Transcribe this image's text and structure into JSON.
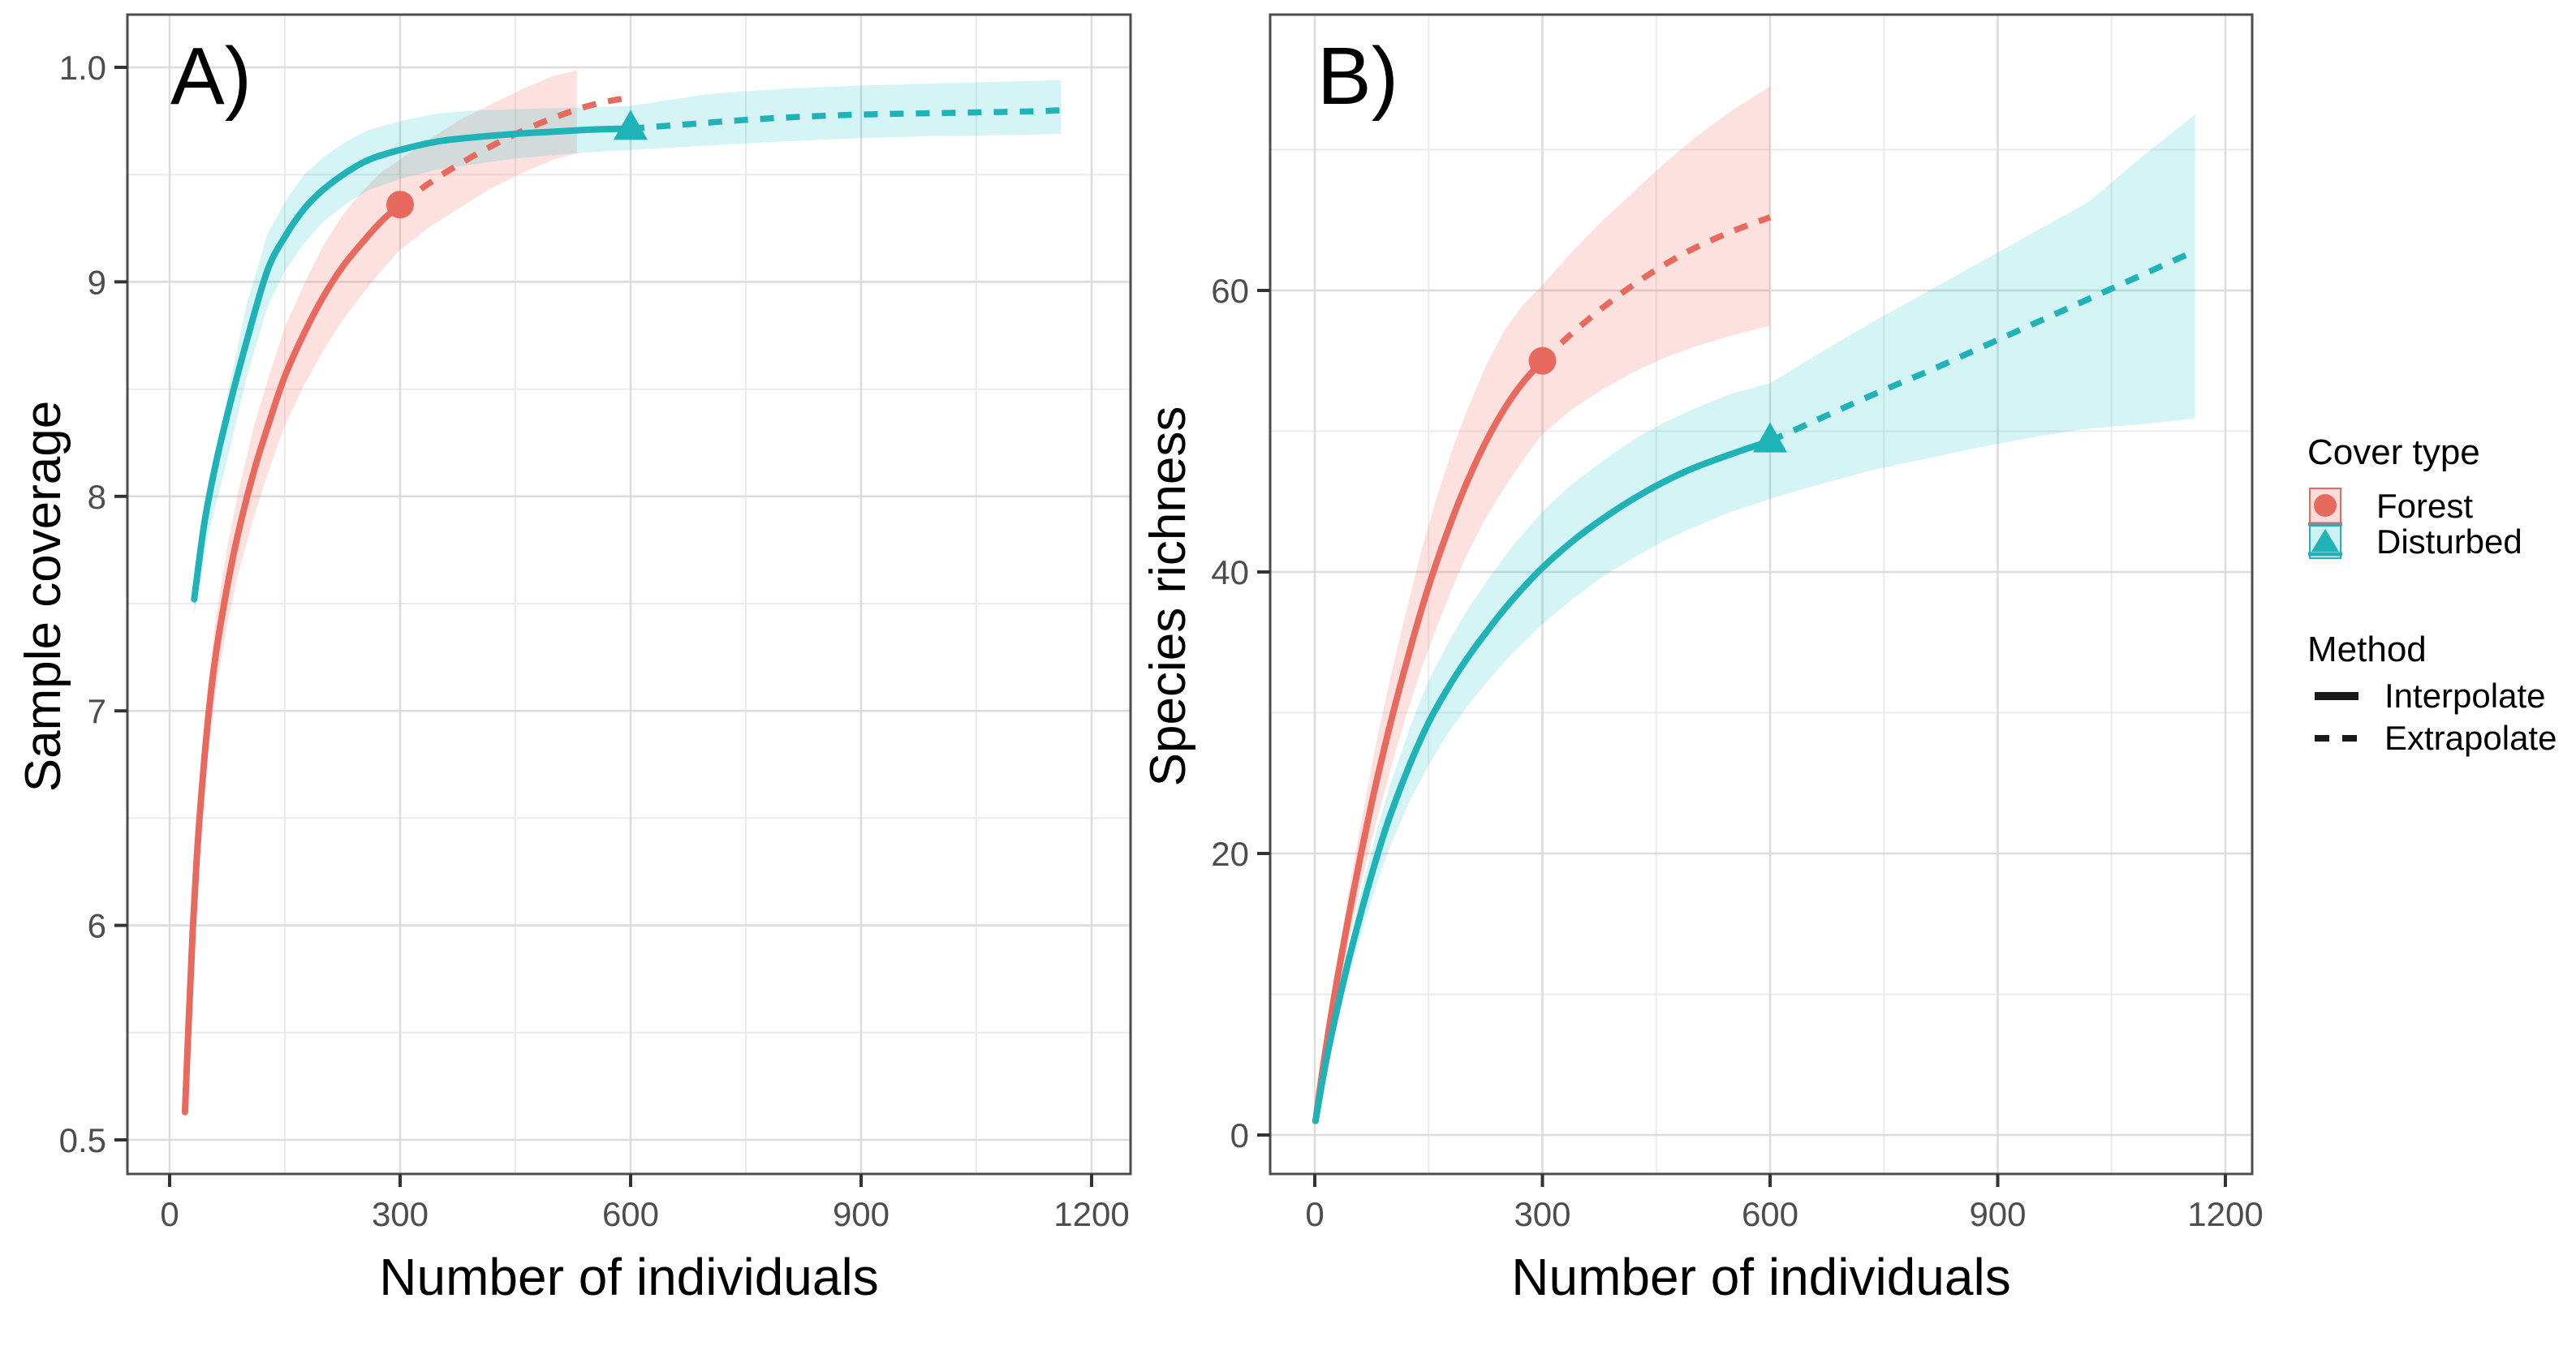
{
  "figure": {
    "background": "#ffffff",
    "colors": {
      "forest": "#e8695e",
      "disturbed": "#1fb3b7",
      "forest_fill": "#f8766d",
      "disturbed_fill": "#00bfc4",
      "grid_major": "#dcdcdc",
      "grid_minor": "#ebebeb",
      "panel_border": "#4d4d4d",
      "tick": "#333333",
      "axis_text": "#4d4d4d",
      "title_text": "#000000",
      "legend_line": "#1a1a1a"
    },
    "legend": {
      "cover": {
        "title": "Cover type",
        "items": [
          {
            "label": "Forest",
            "series": "forest",
            "marker": "circle"
          },
          {
            "label": "Disturbed",
            "series": "disturbed",
            "marker": "triangle"
          }
        ]
      },
      "method": {
        "title": "Method",
        "items": [
          {
            "label": "Interpolate",
            "style": "solid"
          },
          {
            "label": "Extrapolate",
            "style": "dashed"
          }
        ]
      }
    }
  },
  "chart_data": [
    {
      "type": "line",
      "panel_tag": "A)",
      "xlabel": "Number of individuals",
      "ylabel": "Sample coverage",
      "xlim": [
        0,
        1200
      ],
      "ylim": [
        0.5,
        1.0
      ],
      "grid": true,
      "x_ticks": [
        0,
        300,
        600,
        900,
        1200
      ],
      "x_minor": [
        150,
        450,
        750,
        1050
      ],
      "y_ticks": [
        {
          "label": "1.0",
          "value": 1.0
        },
        {
          "label": "9",
          "value": 0.9
        },
        {
          "label": "8",
          "value": 0.8
        },
        {
          "label": "7",
          "value": 0.7
        },
        {
          "label": "6",
          "value": 0.6
        },
        {
          "label": "0.5",
          "value": 0.5
        }
      ],
      "y_minor": [
        0.55,
        0.65,
        0.75,
        0.85,
        0.95
      ],
      "series": [
        {
          "name": "Forest",
          "color_key": "forest",
          "marker": "circle",
          "observed": [
            300,
            0.936
          ],
          "interpolated": [
            [
              20,
              0.513
            ],
            [
              25,
              0.557
            ],
            [
              30,
              0.597
            ],
            [
              35,
              0.629
            ],
            [
              40,
              0.655
            ],
            [
              50,
              0.696
            ],
            [
              60,
              0.726
            ],
            [
              75,
              0.758
            ],
            [
              90,
              0.784
            ],
            [
              110,
              0.812
            ],
            [
              130,
              0.835
            ],
            [
              150,
              0.856
            ],
            [
              175,
              0.876
            ],
            [
              200,
              0.893
            ],
            [
              225,
              0.907
            ],
            [
              250,
              0.918
            ],
            [
              275,
              0.928
            ],
            [
              300,
              0.936
            ]
          ],
          "extrapolated": [
            [
              300,
              0.936
            ],
            [
              340,
              0.9465
            ],
            [
              380,
              0.9555
            ],
            [
              420,
              0.9635
            ],
            [
              460,
              0.9705
            ],
            [
              500,
              0.9765
            ],
            [
              540,
              0.9815
            ],
            [
              575,
              0.9845
            ],
            [
              595,
              0.9855
            ]
          ],
          "ribbon": [
            [
              20,
              0.506,
              0.52
            ],
            [
              30,
              0.585,
              0.609
            ],
            [
              40,
              0.641,
              0.669
            ],
            [
              50,
              0.68,
              0.712
            ],
            [
              60,
              0.709,
              0.743
            ],
            [
              75,
              0.74,
              0.776
            ],
            [
              90,
              0.765,
              0.803
            ],
            [
              110,
              0.791,
              0.833
            ],
            [
              130,
              0.813,
              0.857
            ],
            [
              150,
              0.833,
              0.879
            ],
            [
              175,
              0.852,
              0.899
            ],
            [
              200,
              0.868,
              0.917
            ],
            [
              225,
              0.882,
              0.931
            ],
            [
              250,
              0.894,
              0.942
            ],
            [
              275,
              0.905,
              0.951
            ],
            [
              300,
              0.915,
              0.957
            ],
            [
              340,
              0.926,
              0.967
            ],
            [
              380,
              0.935,
              0.976
            ],
            [
              420,
              0.944,
              0.983
            ],
            [
              460,
              0.951,
              0.99
            ],
            [
              500,
              0.957,
              0.996
            ],
            [
              530,
              0.96,
              0.9985
            ]
          ]
        },
        {
          "name": "Disturbed",
          "color_key": "disturbed",
          "marker": "triangle",
          "observed": [
            600,
            0.9715
          ],
          "interpolated": [
            [
              32,
              0.752
            ],
            [
              45,
              0.787
            ],
            [
              60,
              0.815
            ],
            [
              80,
              0.845
            ],
            [
              100,
              0.872
            ],
            [
              127,
              0.905
            ],
            [
              150,
              0.921
            ],
            [
              175,
              0.934
            ],
            [
              200,
              0.943
            ],
            [
              230,
              0.951
            ],
            [
              260,
              0.957
            ],
            [
              300,
              0.9615
            ],
            [
              350,
              0.9655
            ],
            [
              400,
              0.9675
            ],
            [
              450,
              0.969
            ],
            [
              500,
              0.97
            ],
            [
              550,
              0.971
            ],
            [
              600,
              0.9715
            ]
          ],
          "extrapolated": [
            [
              600,
              0.9715
            ],
            [
              675,
              0.9735
            ],
            [
              750,
              0.9755
            ],
            [
              825,
              0.977
            ],
            [
              900,
              0.978
            ],
            [
              975,
              0.9785
            ],
            [
              1050,
              0.979
            ],
            [
              1125,
              0.9795
            ],
            [
              1160,
              0.98
            ]
          ],
          "ribbon": [
            [
              32,
              0.745,
              0.759
            ],
            [
              50,
              0.782,
              0.806
            ],
            [
              75,
              0.817,
              0.847
            ],
            [
              100,
              0.855,
              0.889
            ],
            [
              127,
              0.888,
              0.922
            ],
            [
              150,
              0.905,
              0.937
            ],
            [
              175,
              0.918,
              0.95
            ],
            [
              200,
              0.928,
              0.958
            ],
            [
              230,
              0.9365,
              0.9655
            ],
            [
              260,
              0.943,
              0.971
            ],
            [
              300,
              0.948,
              0.975
            ],
            [
              350,
              0.9525,
              0.9785
            ],
            [
              400,
              0.955,
              0.98
            ],
            [
              450,
              0.9575,
              0.9805
            ],
            [
              500,
              0.959,
              0.981
            ],
            [
              550,
              0.9605,
              0.9815
            ],
            [
              600,
              0.9615,
              0.982
            ],
            [
              700,
              0.9635,
              0.9875
            ],
            [
              800,
              0.9655,
              0.99
            ],
            [
              900,
              0.967,
              0.9915
            ],
            [
              1000,
              0.968,
              0.9925
            ],
            [
              1100,
              0.9685,
              0.9935
            ],
            [
              1160,
              0.969,
              0.994
            ]
          ]
        }
      ]
    },
    {
      "type": "line",
      "panel_tag": "B)",
      "xlabel": "Number of individuals",
      "ylabel": "Species richness",
      "xlim": [
        0,
        1200
      ],
      "ylim": [
        0,
        75
      ],
      "grid": true,
      "x_ticks": [
        0,
        300,
        600,
        900,
        1200
      ],
      "x_minor": [
        150,
        450,
        750,
        1050
      ],
      "y_ticks": [
        {
          "label": "60",
          "value": 60
        },
        {
          "label": "40",
          "value": 40
        },
        {
          "label": "20",
          "value": 20
        },
        {
          "label": "0",
          "value": 0
        }
      ],
      "y_minor": [
        10,
        30,
        50,
        70
      ],
      "series": [
        {
          "name": "Forest",
          "color_key": "forest",
          "marker": "circle",
          "observed": [
            300,
            55
          ],
          "interpolated": [
            [
              1,
              1
            ],
            [
              10,
              4.5
            ],
            [
              20,
              8
            ],
            [
              30,
              11.2
            ],
            [
              45,
              15.6
            ],
            [
              61,
              20
            ],
            [
              80,
              24.8
            ],
            [
              100,
              29.3
            ],
            [
              120,
              33.4
            ],
            [
              141,
              37.4
            ],
            [
              160,
              40.6
            ],
            [
              180,
              43.6
            ],
            [
              200,
              46.3
            ],
            [
              225,
              49.2
            ],
            [
              250,
              51.6
            ],
            [
              275,
              53.5
            ],
            [
              300,
              55
            ]
          ],
          "extrapolated": [
            [
              300,
              55
            ],
            [
              340,
              57
            ],
            [
              380,
              58.8
            ],
            [
              420,
              60.4
            ],
            [
              460,
              61.8
            ],
            [
              500,
              63
            ],
            [
              550,
              64.2
            ],
            [
              600,
              65.2
            ]
          ],
          "ribbon": [
            [
              1,
              1,
              1
            ],
            [
              20,
              7,
              9
            ],
            [
              45,
              13.8,
              17.4
            ],
            [
              61,
              17.8,
              22.2
            ],
            [
              80,
              22,
              27.6
            ],
            [
              100,
              26,
              32.6
            ],
            [
              120,
              29.7,
              37.1
            ],
            [
              141,
              33.2,
              41.6
            ],
            [
              160,
              36,
              45.2
            ],
            [
              180,
              38.7,
              48.5
            ],
            [
              200,
              41.2,
              51.4
            ],
            [
              225,
              43.8,
              54.6
            ],
            [
              250,
              46,
              57.2
            ],
            [
              275,
              48,
              59
            ],
            [
              300,
              49.8,
              60.4
            ],
            [
              340,
              51.6,
              62.8
            ],
            [
              380,
              53,
              65
            ],
            [
              420,
              54.2,
              67
            ],
            [
              460,
              55.2,
              69
            ],
            [
              500,
              56,
              70.8
            ],
            [
              550,
              56.8,
              72.8
            ],
            [
              600,
              57.5,
              74.5
            ]
          ]
        },
        {
          "name": "Disturbed",
          "color_key": "disturbed",
          "marker": "triangle",
          "observed": [
            600,
            49.3
          ],
          "interpolated": [
            [
              1,
              1
            ],
            [
              10,
              3.8
            ],
            [
              20,
              6.6
            ],
            [
              40,
              11.4
            ],
            [
              60,
              15.6
            ],
            [
              82,
              19.8
            ],
            [
              100,
              22.8
            ],
            [
              125,
              26.3
            ],
            [
              150,
              29.3
            ],
            [
              175,
              31.7
            ],
            [
              200,
              33.8
            ],
            [
              230,
              36
            ],
            [
              260,
              38
            ],
            [
              300,
              40.3
            ],
            [
              340,
              42.2
            ],
            [
              380,
              43.8
            ],
            [
              420,
              45.2
            ],
            [
              460,
              46.4
            ],
            [
              500,
              47.4
            ],
            [
              550,
              48.4
            ],
            [
              600,
              49.3
            ]
          ],
          "extrapolated": [
            [
              600,
              49.3
            ],
            [
              670,
              51
            ],
            [
              740,
              52.7
            ],
            [
              810,
              54.3
            ],
            [
              880,
              56
            ],
            [
              950,
              57.7
            ],
            [
              1020,
              59.4
            ],
            [
              1090,
              61.1
            ],
            [
              1160,
              62.8
            ]
          ],
          "ribbon": [
            [
              1,
              1,
              1
            ],
            [
              20,
              5.9,
              7.3
            ],
            [
              40,
              10.3,
              12.5
            ],
            [
              60,
              14.1,
              17.1
            ],
            [
              82,
              17.9,
              21.7
            ],
            [
              100,
              20.6,
              25
            ],
            [
              125,
              23.7,
              28.9
            ],
            [
              150,
              26.3,
              32.3
            ],
            [
              175,
              28.5,
              34.9
            ],
            [
              200,
              30.4,
              37.2
            ],
            [
              230,
              32.4,
              39.6
            ],
            [
              260,
              34.2,
              41.8
            ],
            [
              300,
              36.3,
              44.3
            ],
            [
              340,
              38.1,
              46.3
            ],
            [
              380,
              39.7,
              47.9
            ],
            [
              420,
              41,
              49.4
            ],
            [
              460,
              42.2,
              50.6
            ],
            [
              500,
              43.2,
              51.6
            ],
            [
              550,
              44.3,
              52.7
            ],
            [
              600,
              45.2,
              53.4
            ],
            [
              670,
              46.3,
              55.7
            ],
            [
              740,
              47.3,
              57.9
            ],
            [
              810,
              48.1,
              60
            ],
            [
              880,
              48.9,
              62.1
            ],
            [
              950,
              49.6,
              64.2
            ],
            [
              1020,
              50.2,
              66.3
            ],
            [
              1090,
              50.5,
              69.5
            ],
            [
              1160,
              50.9,
              72.5
            ]
          ]
        }
      ]
    }
  ]
}
